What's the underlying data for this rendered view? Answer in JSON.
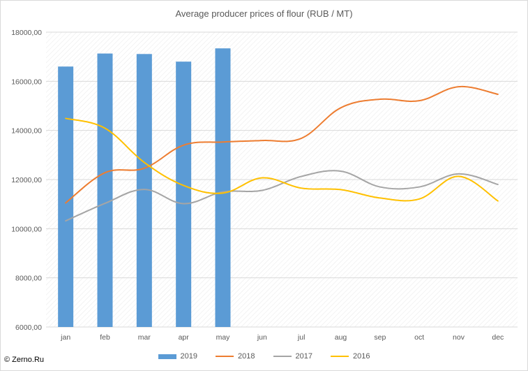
{
  "chart_data": {
    "type": "bar+line",
    "title": "Average producer prices of flour (RUB / MT)",
    "categories": [
      "jan",
      "feb",
      "mar",
      "apr",
      "may",
      "jun",
      "jul",
      "aug",
      "sep",
      "oct",
      "nov",
      "dec"
    ],
    "ylim": [
      6000,
      18000
    ],
    "yticks": [
      6000,
      8000,
      10000,
      12000,
      14000,
      16000,
      18000
    ],
    "ytick_labels": [
      "6000,00",
      "8000,00",
      "10000,00",
      "12000,00",
      "14000,00",
      "16000,00",
      "18000,00"
    ],
    "grid": "horizontal",
    "legend_position": "bottom",
    "series": [
      {
        "name": "2019",
        "kind": "bar",
        "color": "#5b9bd5",
        "values": [
          16600,
          17130,
          17110,
          16800,
          17340,
          null,
          null,
          null,
          null,
          null,
          null,
          null
        ]
      },
      {
        "name": "2018",
        "kind": "line",
        "color": "#ed7d31",
        "values": [
          11050,
          12280,
          12460,
          13400,
          13530,
          13590,
          13680,
          14920,
          15270,
          15210,
          15780,
          15470
        ]
      },
      {
        "name": "2017",
        "kind": "line",
        "color": "#a5a5a5",
        "values": [
          10320,
          11030,
          11600,
          11020,
          11500,
          11560,
          12130,
          12340,
          11700,
          11700,
          12230,
          11800
        ]
      },
      {
        "name": "2016",
        "kind": "line",
        "color": "#ffc000",
        "values": [
          14490,
          14090,
          12700,
          11760,
          11450,
          12070,
          11650,
          11590,
          11250,
          11210,
          12130,
          11130
        ]
      }
    ]
  },
  "footer": {
    "copyright": "© Zerno.Ru"
  }
}
